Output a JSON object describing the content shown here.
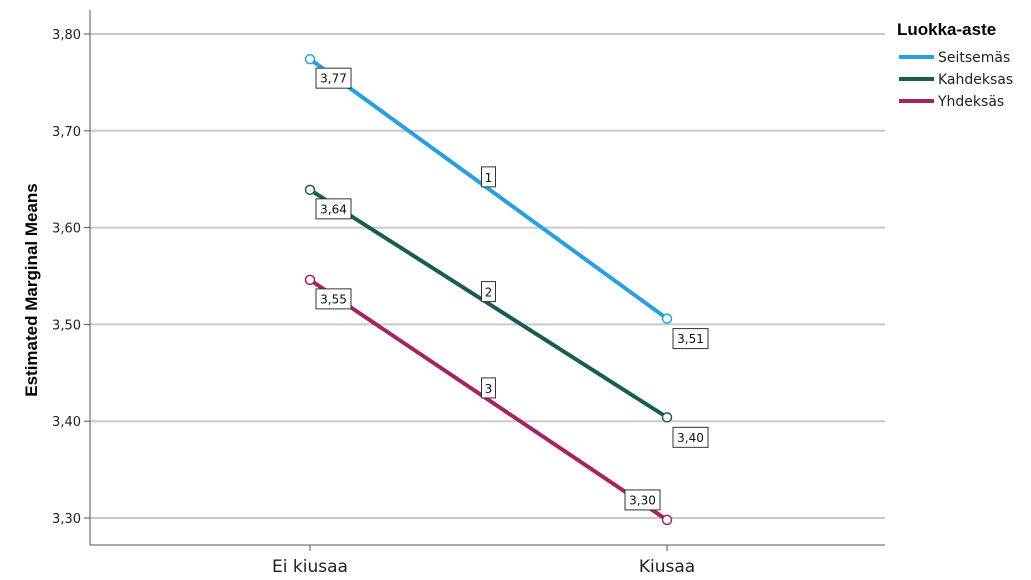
{
  "chart_data": {
    "type": "line",
    "ylabel": "Estimated Marginal Means",
    "xlabel": "",
    "categories": [
      "Ei kiusaa",
      "Kiusaa"
    ],
    "yticks": [
      "3,30",
      "3,40",
      "3,50",
      "3,60",
      "3,70",
      "3,80"
    ],
    "ylim": [
      3.28,
      3.82
    ],
    "grid": true,
    "legend": {
      "title": "Luokka-aste",
      "position": "top-right"
    },
    "series": [
      {
        "name": "Seitsemäs",
        "values": [
          3.774,
          3.506
        ],
        "labels": [
          "3,77",
          "3,51"
        ],
        "marker": "1",
        "color": "#2a9fe0"
      },
      {
        "name": "Kahdeksas",
        "values": [
          3.639,
          3.404
        ],
        "labels": [
          "3,64",
          "3,40"
        ],
        "marker": "2",
        "color": "#1a5c50"
      },
      {
        "name": "Yhdeksäs",
        "values": [
          3.546,
          3.298
        ],
        "labels": [
          "3,55",
          "3,30"
        ],
        "marker": "3",
        "color": "#a3245e"
      }
    ]
  }
}
